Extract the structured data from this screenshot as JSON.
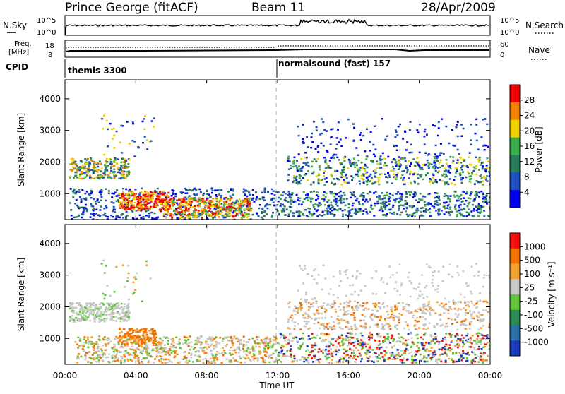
{
  "header": {
    "station": "Prince George (fitACF)",
    "beam": "Beam 11",
    "date": "28/Apr/2009"
  },
  "sky_panel": {
    "left_label": "N.Sky",
    "left_ticks": [
      "10^5",
      "10^0"
    ],
    "right_label": "N.Search",
    "right_ticks": [
      "10^5",
      "10^0"
    ]
  },
  "freq_panel": {
    "left_label_1": "Freq.",
    "left_label_2": "[MHz]",
    "left_ticks": [
      "18",
      "8"
    ],
    "right_label": "Nave",
    "right_ticks": [
      "60",
      "0"
    ]
  },
  "cpid": {
    "label": "CPID",
    "segments": [
      {
        "text": "themis 3300",
        "start_hour": 0
      },
      {
        "text": "normalsound (fast) 157",
        "start_hour": 12
      }
    ]
  },
  "chart_data": [
    {
      "type": "heatmap",
      "parameter": "power",
      "ylabel": "Slant Range [km]",
      "y_ticks": [
        1000,
        2000,
        3000,
        4000
      ],
      "ylim": [
        180,
        4600
      ],
      "x_ticks": [
        "00:00",
        "04:00",
        "08:00",
        "12:00",
        "16:00",
        "20:00",
        "00:00"
      ],
      "xlim_hours": [
        0,
        24
      ],
      "colorbar": {
        "label": "Power [dB]",
        "ticks": [
          "4",
          "8",
          "12",
          "16",
          "20",
          "24",
          "28"
        ],
        "range": [
          0,
          30
        ],
        "colors": [
          "#0000f0",
          "#1f4fbe",
          "#287c5a",
          "#3aaa4a",
          "#f0d000",
          "#f08000",
          "#f00000"
        ]
      }
    },
    {
      "type": "heatmap",
      "parameter": "velocity",
      "ylabel": "Slant Range [km]",
      "y_ticks": [
        1000,
        2000,
        3000,
        4000
      ],
      "ylim": [
        180,
        4600
      ],
      "x_ticks": [
        "00:00",
        "04:00",
        "08:00",
        "12:00",
        "16:00",
        "20:00",
        "00:00"
      ],
      "xlabel": "Time UT",
      "colorbar": {
        "label": "Velocity [m s⁻¹]",
        "ticks": [
          "1000",
          "500",
          "100",
          "25",
          "-25",
          "-100",
          "-500",
          "-1000"
        ],
        "colors": [
          "#1a3ab8",
          "#2a70a8",
          "#2a8a52",
          "#62c23a",
          "#c8c8c8",
          "#f0a030",
          "#f07000",
          "#f01010"
        ]
      }
    }
  ]
}
